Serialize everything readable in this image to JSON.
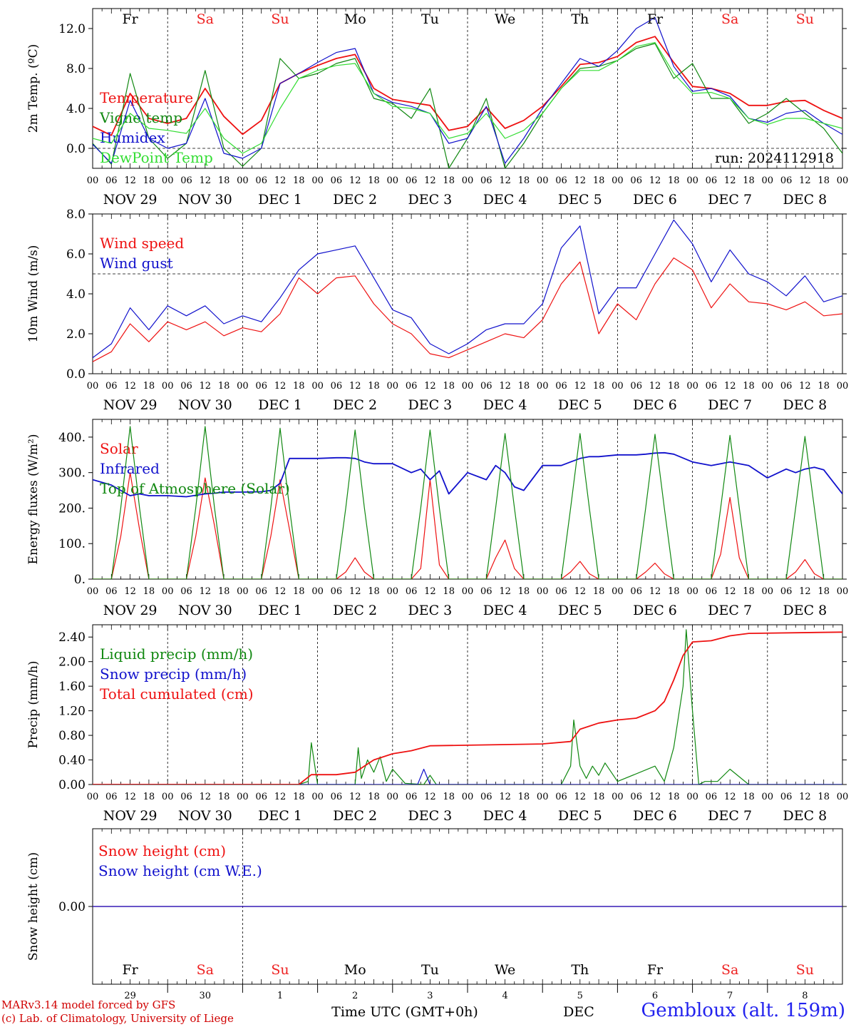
{
  "footer": {
    "credit_line1": "MARv3.14 model forced by GFS",
    "credit_line2": "(c) Lab. of Climatology, University of Liege",
    "x_axis_label": "Time UTC (GMT+0h)",
    "month_label": "DEC",
    "station": "Gembloux (alt. 159m)"
  },
  "colors": {
    "red": "#ee1111",
    "green": "#118811",
    "blue": "#1111cc",
    "lightgreen": "#33dd33",
    "weekend": "#ee2222",
    "weekday": "#000000"
  },
  "chart_data": {
    "time_axis": {
      "hour_ticks": [
        "00",
        "06",
        "12",
        "18"
      ],
      "final_tick": "00",
      "date_labels": [
        "NOV 29",
        "NOV 30",
        "DEC  1",
        "DEC  2",
        "DEC  3",
        "DEC  4",
        "DEC  5",
        "DEC  6",
        "DEC  7",
        "DEC  8"
      ],
      "weekdays": [
        "Fr",
        "Sa",
        "Su",
        "Mo",
        "Tu",
        "We",
        "Th",
        "Fr",
        "Sa",
        "Su"
      ],
      "weekend_flags": [
        false,
        true,
        true,
        false,
        false,
        false,
        false,
        false,
        true,
        true
      ],
      "bottom_day_numbers": [
        "29",
        "30",
        "1",
        "2",
        "3",
        "4",
        "5",
        "6",
        "7",
        "8"
      ],
      "x_range_hours": [
        0,
        240
      ]
    },
    "panels": [
      {
        "id": "temp",
        "type": "line",
        "ylabel": "2m Temp. (ºC)",
        "ylim": [
          -2,
          14
        ],
        "yticks": [
          0,
          4,
          8,
          12
        ],
        "ytick_labels": [
          "0.0",
          "4.0",
          "8.0",
          "12.0"
        ],
        "ref_line": 0,
        "annotation": "run: 2024112918",
        "x": [
          0,
          6,
          12,
          18,
          24,
          30,
          36,
          42,
          48,
          54,
          60,
          66,
          72,
          78,
          84,
          90,
          96,
          102,
          108,
          114,
          120,
          126,
          132,
          138,
          144,
          150,
          156,
          162,
          168,
          174,
          180,
          186,
          192,
          198,
          204,
          210,
          216,
          222,
          228,
          234,
          240
        ],
        "series": [
          {
            "name": "Temperature",
            "color": "red",
            "values": [
              2.2,
              1.3,
              5.5,
              3.0,
              2.5,
              3.0,
              6.0,
              3.2,
              1.4,
              2.8,
              6.5,
              7.5,
              8.3,
              9.0,
              9.4,
              6.0,
              4.9,
              4.6,
              4.3,
              1.8,
              2.2,
              4.1,
              2.0,
              2.8,
              4.2,
              6.2,
              8.4,
              8.6,
              9.2,
              10.6,
              11.2,
              8.6,
              6.2,
              6.0,
              5.5,
              4.3,
              4.3,
              4.7,
              4.8,
              3.8,
              3.0
            ]
          },
          {
            "name": "Vigne temp",
            "color": "green",
            "values": [
              0.5,
              -1.6,
              7.5,
              1.0,
              -1.0,
              0.5,
              7.8,
              0.0,
              -1.8,
              0.0,
              9.0,
              7.0,
              7.5,
              8.5,
              9.0,
              5.0,
              4.5,
              3.0,
              6.0,
              -2.0,
              1.0,
              5.0,
              -2.0,
              0.5,
              3.5,
              6.0,
              8.0,
              8.2,
              8.8,
              10.0,
              10.5,
              7.0,
              8.5,
              5.0,
              5.0,
              2.5,
              3.5,
              5.0,
              3.5,
              2.0,
              -0.5
            ]
          },
          {
            "name": "Humidex",
            "color": "blue",
            "values": [
              0.4,
              -1.5,
              4.8,
              1.0,
              0.0,
              0.5,
              5.0,
              -0.5,
              -1.0,
              0.0,
              6.5,
              7.5,
              8.6,
              9.6,
              10.0,
              5.5,
              4.6,
              4.2,
              3.5,
              0.5,
              1.0,
              4.2,
              -1.5,
              1.0,
              4.0,
              6.5,
              9.0,
              8.2,
              9.8,
              12.0,
              13.1,
              8.2,
              5.7,
              6.0,
              5.2,
              3.0,
              2.6,
              3.5,
              3.8,
              2.5,
              1.4
            ]
          },
          {
            "name": "DewPoint Temp",
            "color": "lightgreen",
            "values": [
              1.0,
              0.5,
              3.5,
              2.0,
              1.8,
              1.5,
              4.0,
              1.0,
              -0.5,
              0.5,
              4.0,
              7.0,
              7.8,
              8.3,
              8.5,
              5.5,
              4.2,
              4.0,
              3.5,
              1.0,
              1.5,
              3.5,
              1.0,
              1.8,
              3.5,
              6.0,
              7.8,
              7.8,
              8.8,
              10.2,
              10.6,
              7.5,
              5.5,
              5.6,
              5.0,
              3.0,
              2.4,
              3.0,
              3.0,
              2.5,
              2.0
            ]
          }
        ]
      },
      {
        "id": "wind",
        "type": "line",
        "ylabel": "10m Wind (m/s)",
        "ylim": [
          0,
          8
        ],
        "yticks": [
          0,
          2,
          4,
          6,
          8
        ],
        "ytick_labels": [
          "0.0",
          "2.0",
          "4.0",
          "6.0",
          "8.0"
        ],
        "ref_line": 5,
        "x": [
          0,
          6,
          12,
          18,
          24,
          30,
          36,
          42,
          48,
          54,
          60,
          66,
          72,
          78,
          84,
          90,
          96,
          102,
          108,
          114,
          120,
          126,
          132,
          138,
          144,
          150,
          156,
          162,
          168,
          174,
          180,
          186,
          192,
          198,
          204,
          210,
          216,
          222,
          228,
          234,
          240
        ],
        "series": [
          {
            "name": "Wind speed",
            "color": "red",
            "values": [
              0.6,
              1.1,
              2.5,
              1.6,
              2.6,
              2.2,
              2.6,
              1.9,
              2.3,
              2.1,
              3.0,
              4.8,
              4.0,
              4.8,
              4.9,
              3.5,
              2.5,
              2.0,
              1.0,
              0.8,
              1.2,
              1.6,
              2.0,
              1.8,
              2.7,
              4.5,
              5.6,
              2.0,
              3.5,
              2.7,
              4.5,
              5.8,
              5.2,
              3.3,
              4.5,
              3.6,
              3.5,
              3.2,
              3.6,
              2.9,
              3.0
            ]
          },
          {
            "name": "Wind gust",
            "color": "blue",
            "values": [
              0.8,
              1.5,
              3.3,
              2.2,
              3.4,
              2.9,
              3.4,
              2.5,
              2.9,
              2.6,
              3.8,
              5.2,
              6.0,
              6.2,
              6.4,
              4.8,
              3.2,
              2.8,
              1.5,
              1.0,
              1.5,
              2.2,
              2.5,
              2.5,
              3.5,
              6.3,
              7.4,
              3.0,
              4.3,
              4.3,
              6.0,
              7.7,
              6.5,
              4.6,
              6.2,
              5.0,
              4.6,
              3.9,
              4.9,
              3.6,
              3.9
            ]
          }
        ]
      },
      {
        "id": "energy",
        "type": "line",
        "ylabel": "Energy fluxes (W/m²)",
        "ylim": [
          0,
          450
        ],
        "yticks": [
          0,
          100,
          200,
          300,
          400
        ],
        "ytick_labels": [
          "0.",
          "100.",
          "200.",
          "300.",
          "400."
        ],
        "x": [
          0,
          6,
          9,
          12,
          15,
          18,
          24,
          30,
          33,
          36,
          39,
          42,
          48,
          54,
          57,
          60,
          63,
          66,
          72,
          78,
          81,
          84,
          87,
          90,
          96,
          102,
          105,
          108,
          111,
          114,
          120,
          126,
          129,
          132,
          135,
          138,
          144,
          150,
          153,
          156,
          159,
          162,
          168,
          174,
          177,
          180,
          183,
          186,
          192,
          198,
          201,
          204,
          207,
          210,
          216,
          222,
          225,
          228,
          231,
          234,
          240
        ],
        "series": [
          {
            "name": "Solar",
            "color": "red",
            "values": [
              0,
              0,
              120,
              300,
              140,
              0,
              0,
              0,
              120,
              285,
              150,
              0,
              0,
              0,
              120,
              280,
              140,
              0,
              0,
              0,
              20,
              60,
              20,
              0,
              0,
              0,
              30,
              280,
              40,
              0,
              0,
              0,
              60,
              110,
              30,
              0,
              0,
              0,
              20,
              50,
              15,
              0,
              0,
              0,
              20,
              45,
              15,
              0,
              0,
              0,
              70,
              230,
              60,
              0,
              0,
              0,
              20,
              55,
              15,
              0,
              0
            ]
          },
          {
            "name": "Infrared",
            "color": "blue",
            "values": [
              280,
              265,
              250,
              235,
              240,
              235,
              235,
              232,
              236,
              240,
              242,
              245,
              245,
              246,
              250,
              270,
              340,
              340,
              340,
              342,
              342,
              340,
              330,
              325,
              325,
              300,
              310,
              280,
              305,
              240,
              300,
              280,
              320,
              300,
              260,
              250,
              320,
              320,
              330,
              340,
              345,
              345,
              350,
              350,
              352,
              355,
              356,
              352,
              330,
              320,
              325,
              330,
              325,
              320,
              285,
              310,
              300,
              310,
              315,
              308,
              240
            ]
          },
          {
            "name": "Top of Atmosphere (Solar)",
            "color": "green",
            "values": [
              0,
              0,
              200,
              430,
              200,
              0,
              0,
              0,
              200,
              430,
              200,
              0,
              0,
              0,
              200,
              425,
              200,
              0,
              0,
              0,
              200,
              420,
              200,
              0,
              0,
              0,
              200,
              420,
              200,
              0,
              0,
              0,
              200,
              410,
              200,
              0,
              0,
              0,
              200,
              410,
              200,
              0,
              0,
              0,
              200,
              408,
              200,
              0,
              0,
              0,
              200,
              405,
              200,
              0,
              0,
              0,
              200,
              402,
              200,
              0,
              0
            ]
          }
        ]
      },
      {
        "id": "precip",
        "type": "line",
        "ylabel": "Precip (mm/h)",
        "ylim": [
          0,
          2.6
        ],
        "yticks": [
          0,
          0.4,
          0.8,
          1.2,
          1.6,
          2.0,
          2.4
        ],
        "ytick_labels": [
          "0.00",
          "0.40",
          "0.80",
          "1.20",
          "1.60",
          "2.00",
          "2.40"
        ],
        "series": [
          {
            "name": "Liquid precip (mm/h)",
            "color": "green",
            "x": [
              0,
              66,
              69,
              70,
              72,
              84,
              85,
              86,
              88,
              90,
              92,
              94,
              96,
              100,
              106,
              108,
              110,
              120,
              150,
              153,
              154,
              156,
              158,
              160,
              162,
              164,
              168,
              180,
              183,
              186,
              189,
              190,
              192,
              194,
              196,
              200,
              204,
              210,
              240
            ],
            "values": [
              0,
              0,
              0.05,
              0.68,
              0,
              0,
              0.6,
              0.1,
              0.4,
              0.2,
              0.45,
              0.05,
              0.25,
              0.02,
              0,
              0.15,
              0,
              0,
              0,
              0.3,
              1.05,
              0.3,
              0.1,
              0.3,
              0.15,
              0.35,
              0.05,
              0.3,
              0.05,
              0.6,
              1.6,
              2.52,
              1.2,
              0,
              0.05,
              0.05,
              0.25,
              0,
              0
            ]
          },
          {
            "name": "Snow precip (mm/h)",
            "color": "blue",
            "x": [
              0,
              104,
              106,
              108,
              240
            ],
            "values": [
              0,
              0,
              0.25,
              0,
              0
            ]
          },
          {
            "name": "Total cumulated (cm)",
            "color": "red",
            "x": [
              0,
              66,
              70,
              78,
              84,
              90,
              96,
              102,
              108,
              120,
              144,
              153,
              156,
              162,
              168,
              174,
              180,
              183,
              186,
              189,
              192,
              198,
              204,
              210,
              240
            ],
            "values": [
              0,
              0,
              0.16,
              0.16,
              0.2,
              0.4,
              0.5,
              0.55,
              0.63,
              0.64,
              0.66,
              0.7,
              0.9,
              1.0,
              1.05,
              1.08,
              1.2,
              1.35,
              1.7,
              2.1,
              2.32,
              2.34,
              2.42,
              2.46,
              2.48
            ]
          }
        ]
      },
      {
        "id": "snow",
        "type": "line",
        "ylabel": "Snow height (cm)",
        "ylim": [
          -1,
          1
        ],
        "yticks": [
          0
        ],
        "ytick_labels": [
          "0.00"
        ],
        "x": [
          0,
          240
        ],
        "series": [
          {
            "name": "Snow height (cm)",
            "color": "red",
            "values": [
              0,
              0
            ]
          },
          {
            "name": "Snow height (cm W.E.)",
            "color": "blue",
            "values": [
              0,
              0
            ]
          }
        ]
      }
    ]
  }
}
